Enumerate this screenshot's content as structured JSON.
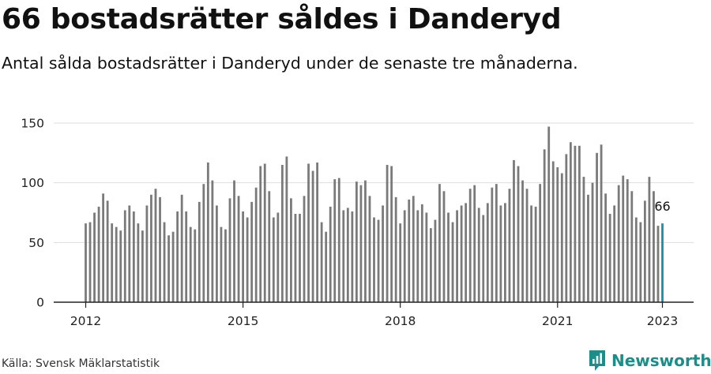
{
  "header": {
    "title": "66 bostadsrätter såldes i Danderyd",
    "subtitle": "Antal sålda bostadsrätter i Danderyd under de senaste tre månaderna."
  },
  "footer": {
    "source": "Källa: Svensk Mäklarstatistik",
    "brand": "Newsworthy"
  },
  "colors": {
    "bar": "#7a7a7a",
    "highlight": "#1a8fa8",
    "grid": "#dddddd",
    "brand": "#1a8f8a"
  },
  "chart_data": {
    "type": "bar",
    "x_start": "2012-01",
    "x_end": "2023-01",
    "x_ticks": [
      "2012",
      "2015",
      "2018",
      "2021",
      "2023"
    ],
    "y_ticks": [
      0,
      50,
      100,
      150
    ],
    "ylim": [
      0,
      150
    ],
    "grid": true,
    "highlight_last": true,
    "last_value_label": "66",
    "values": [
      66,
      67,
      75,
      80,
      91,
      85,
      66,
      63,
      60,
      77,
      81,
      76,
      66,
      60,
      81,
      90,
      95,
      88,
      67,
      56,
      59,
      76,
      90,
      76,
      63,
      61,
      84,
      99,
      117,
      102,
      81,
      63,
      61,
      87,
      102,
      89,
      76,
      71,
      84,
      96,
      114,
      116,
      93,
      71,
      75,
      115,
      122,
      87,
      74,
      74,
      89,
      116,
      110,
      117,
      67,
      59,
      80,
      103,
      104,
      77,
      79,
      76,
      101,
      98,
      102,
      89,
      71,
      69,
      81,
      115,
      114,
      88,
      66,
      77,
      86,
      89,
      77,
      82,
      75,
      62,
      69,
      99,
      93,
      75,
      67,
      77,
      81,
      83,
      95,
      98,
      79,
      73,
      83,
      96,
      99,
      81,
      83,
      95,
      119,
      114,
      102,
      95,
      81,
      80,
      99,
      128,
      147,
      118,
      113,
      108,
      124,
      134,
      131,
      131,
      105,
      90,
      100,
      125,
      132,
      91,
      74,
      81,
      98,
      106,
      103,
      93,
      71,
      67,
      85,
      105,
      93,
      64,
      66
    ]
  }
}
